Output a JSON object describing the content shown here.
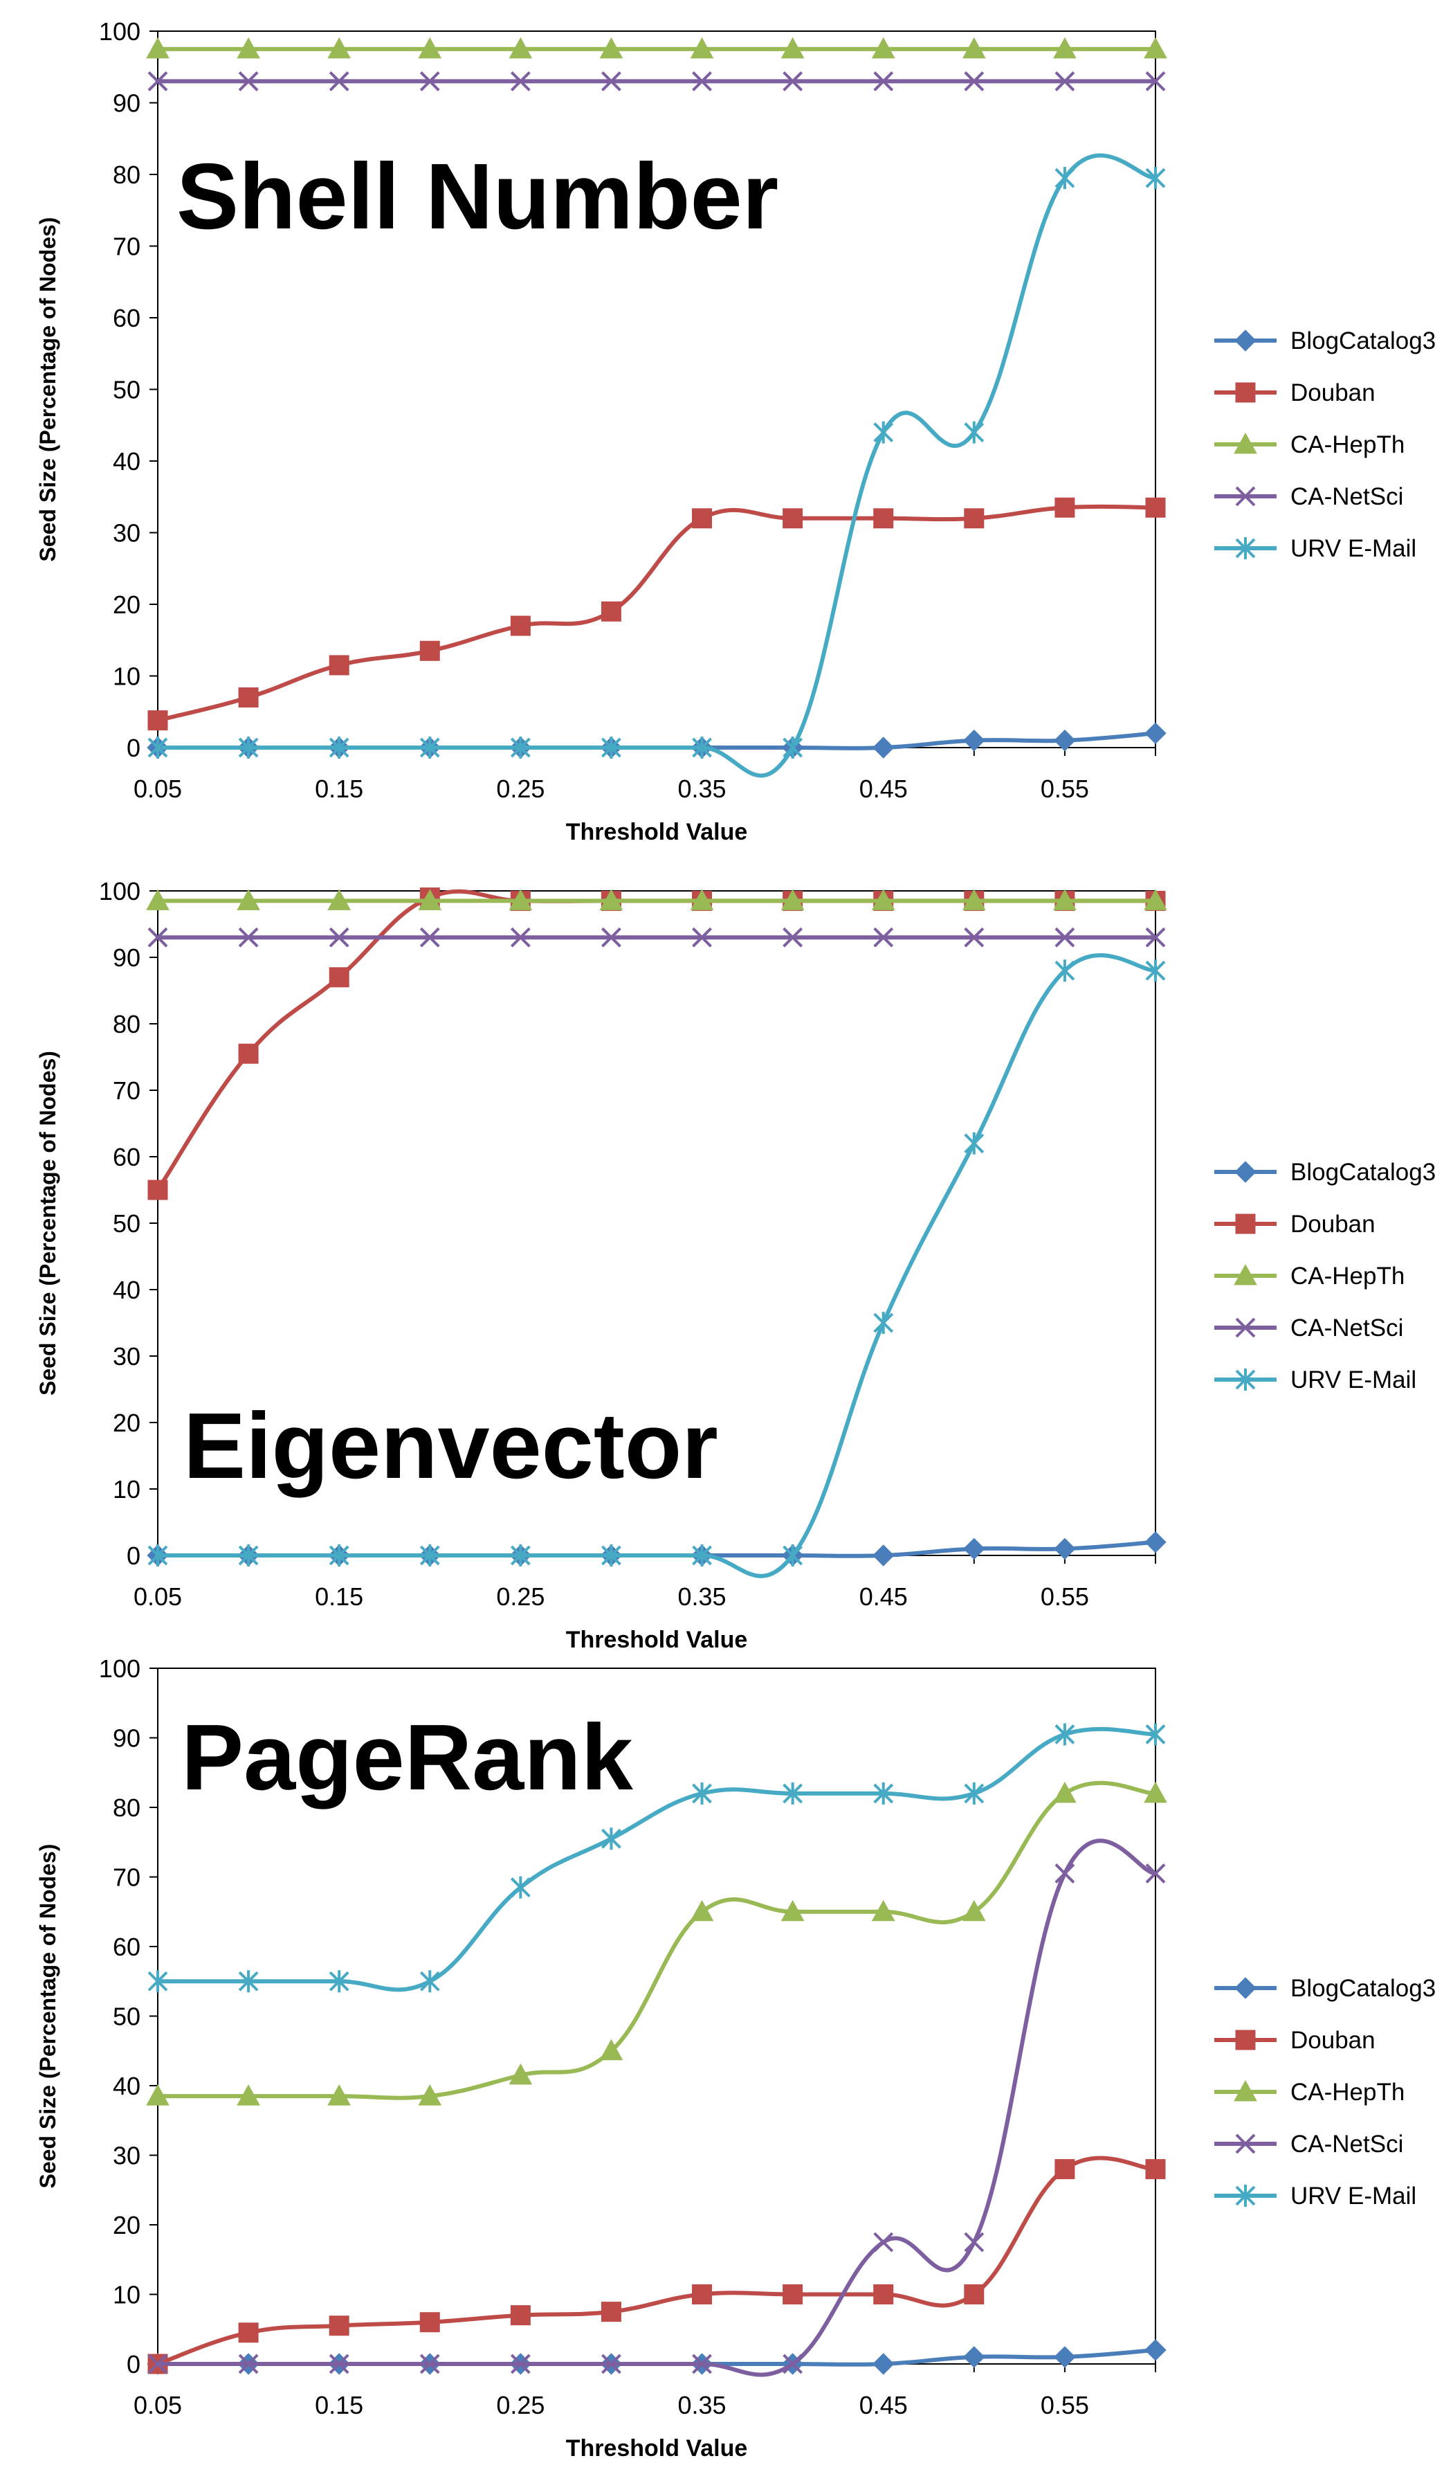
{
  "chart_data": [
    {
      "type": "line",
      "title": "Shell Number",
      "xlabel": "Threshold Value",
      "ylabel": "Seed Size (Percentage of Nodes)",
      "x": [
        0.05,
        0.1,
        0.15,
        0.2,
        0.25,
        0.3,
        0.35,
        0.4,
        0.45,
        0.5,
        0.55,
        0.6
      ],
      "xticks": [
        "0.05",
        "0.15",
        "0.25",
        "0.35",
        "0.45",
        "0.55"
      ],
      "xlim": [
        0.05,
        0.6
      ],
      "ylim": [
        0,
        100
      ],
      "yticks": [
        "0",
        "10",
        "20",
        "30",
        "40",
        "50",
        "60",
        "70",
        "80",
        "90",
        "100"
      ],
      "legend_position": "right",
      "series": [
        {
          "name": "BlogCatalog3",
          "color": "#4a7ebb",
          "marker": "diamond",
          "values": [
            0,
            0,
            0,
            0,
            0,
            0,
            0,
            0,
            0,
            1,
            1,
            2
          ]
        },
        {
          "name": "Douban",
          "color": "#be4b48",
          "marker": "square",
          "values": [
            3.8,
            7,
            11.5,
            13.5,
            17,
            19,
            32,
            32,
            32,
            32,
            33.5,
            33.5
          ]
        },
        {
          "name": "CA-HepTh",
          "color": "#98b954",
          "marker": "triangle",
          "values": [
            97.5,
            97.5,
            97.5,
            97.5,
            97.5,
            97.5,
            97.5,
            97.5,
            97.5,
            97.5,
            97.5,
            97.5
          ]
        },
        {
          "name": "CA-NetSci",
          "color": "#7d5fa0",
          "marker": "x",
          "values": [
            93,
            93,
            93,
            93,
            93,
            93,
            93,
            93,
            93,
            93,
            93,
            93
          ]
        },
        {
          "name": "URV E-Mail",
          "color": "#46aac5",
          "marker": "star",
          "values": [
            0,
            0,
            0,
            0,
            0,
            0,
            0,
            0,
            44,
            44,
            79.5,
            79.5
          ]
        }
      ]
    },
    {
      "type": "line",
      "title": "Eigenvector",
      "xlabel": "Threshold Value",
      "ylabel": "Seed Size (Percentage of Nodes)",
      "x": [
        0.05,
        0.1,
        0.15,
        0.2,
        0.25,
        0.3,
        0.35,
        0.4,
        0.45,
        0.5,
        0.55,
        0.6
      ],
      "xticks": [
        "0.05",
        "0.15",
        "0.25",
        "0.35",
        "0.45",
        "0.55"
      ],
      "xlim": [
        0.05,
        0.6
      ],
      "ylim": [
        0,
        100
      ],
      "yticks": [
        "0",
        "10",
        "20",
        "30",
        "40",
        "50",
        "60",
        "70",
        "80",
        "90",
        "100"
      ],
      "legend_position": "right",
      "series": [
        {
          "name": "BlogCatalog3",
          "color": "#4a7ebb",
          "marker": "diamond",
          "values": [
            0,
            0,
            0,
            0,
            0,
            0,
            0,
            0,
            0,
            1,
            1,
            2
          ]
        },
        {
          "name": "Douban",
          "color": "#be4b48",
          "marker": "square",
          "values": [
            55,
            75.5,
            87,
            99,
            98.5,
            98.5,
            98.5,
            98.5,
            98.5,
            98.5,
            98.5,
            98.5
          ]
        },
        {
          "name": "CA-HepTh",
          "color": "#98b954",
          "marker": "triangle",
          "values": [
            98.5,
            98.5,
            98.5,
            98.5,
            98.5,
            98.5,
            98.5,
            98.5,
            98.5,
            98.5,
            98.5,
            98.5
          ]
        },
        {
          "name": "CA-NetSci",
          "color": "#7d5fa0",
          "marker": "x",
          "values": [
            93,
            93,
            93,
            93,
            93,
            93,
            93,
            93,
            93,
            93,
            93,
            93
          ]
        },
        {
          "name": "URV E-Mail",
          "color": "#46aac5",
          "marker": "star",
          "values": [
            0,
            0,
            0,
            0,
            0,
            0,
            0,
            0,
            35,
            62,
            88,
            88
          ]
        }
      ]
    },
    {
      "type": "line",
      "title": "PageRank",
      "xlabel": "Threshold Value",
      "ylabel": "Seed Size (Percentage of Nodes)",
      "x": [
        0.05,
        0.1,
        0.15,
        0.2,
        0.25,
        0.3,
        0.35,
        0.4,
        0.45,
        0.5,
        0.55,
        0.6
      ],
      "xticks": [
        "0.05",
        "0.15",
        "0.25",
        "0.35",
        "0.45",
        "0.55"
      ],
      "xlim": [
        0.05,
        0.6
      ],
      "ylim": [
        0,
        100
      ],
      "yticks": [
        "0",
        "10",
        "20",
        "30",
        "40",
        "50",
        "60",
        "70",
        "80",
        "90",
        "100"
      ],
      "legend_position": "right",
      "series": [
        {
          "name": "BlogCatalog3",
          "color": "#4a7ebb",
          "marker": "diamond",
          "values": [
            0,
            0,
            0,
            0,
            0,
            0,
            0,
            0,
            0,
            1,
            1,
            2
          ]
        },
        {
          "name": "Douban",
          "color": "#be4b48",
          "marker": "square",
          "values": [
            0,
            4.5,
            5.5,
            6,
            7,
            7.5,
            10,
            10,
            10,
            10,
            28,
            28
          ]
        },
        {
          "name": "CA-HepTh",
          "color": "#98b954",
          "marker": "triangle",
          "values": [
            38.5,
            38.5,
            38.5,
            38.5,
            41.5,
            45,
            65,
            65,
            65,
            65,
            82,
            82
          ]
        },
        {
          "name": "CA-NetSci",
          "color": "#7d5fa0",
          "marker": "x",
          "values": [
            0,
            0,
            0,
            0,
            0,
            0,
            0,
            0,
            17.5,
            17.5,
            70.5,
            70.5
          ]
        },
        {
          "name": "URV E-Mail",
          "color": "#46aac5",
          "marker": "star",
          "values": [
            55,
            55,
            55,
            55,
            68.5,
            75.5,
            82,
            82,
            82,
            82,
            90.5,
            90.5
          ]
        }
      ]
    }
  ]
}
